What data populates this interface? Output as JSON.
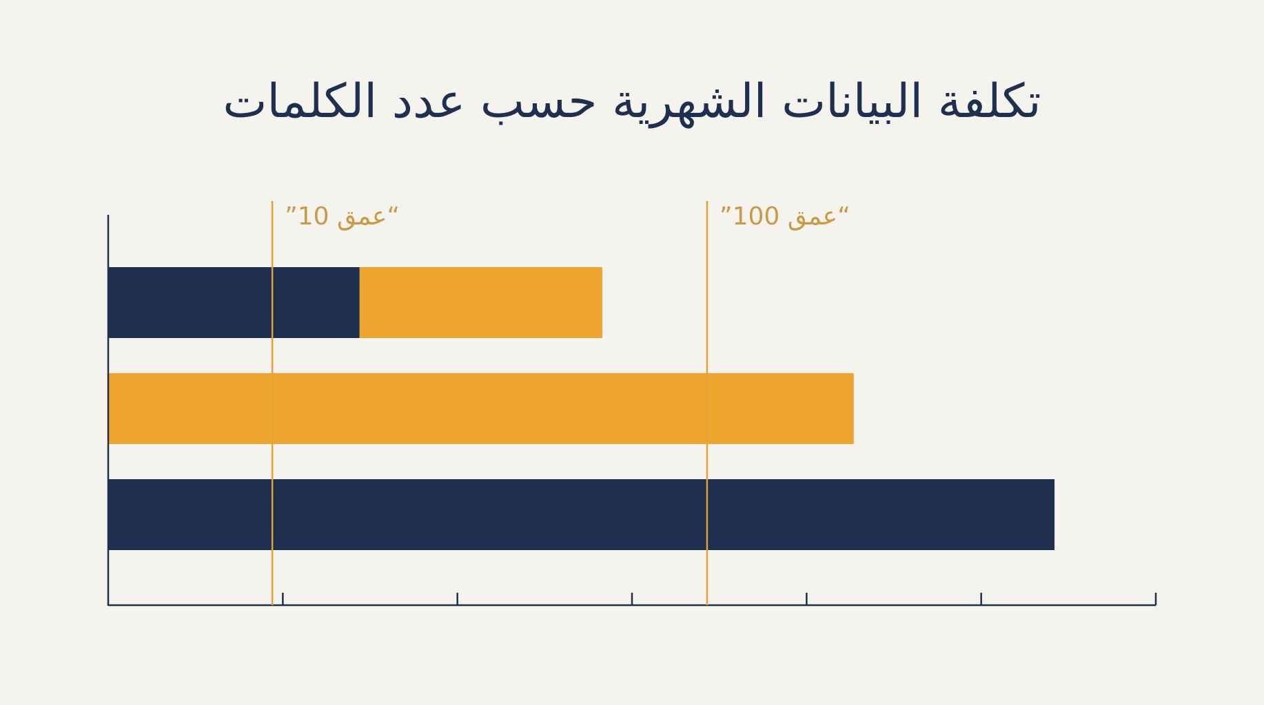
{
  "chart_data": {
    "type": "bar",
    "orientation": "horizontal",
    "title": "تكلفة البيانات الشهرية حسب عدد الكلمات",
    "xlabel": "",
    "ylabel": "",
    "xlim": [
      0,
      6
    ],
    "x_ticks": [
      1,
      2,
      3,
      4,
      5,
      6
    ],
    "grid": false,
    "legend": "none",
    "rows": [
      {
        "segments": [
          {
            "value": 1.44,
            "color": "#1e2f50"
          },
          {
            "value": 1.39,
            "color": "#eda52f"
          }
        ]
      },
      {
        "segments": [
          {
            "value": 4.27,
            "color": "#eda52f"
          }
        ]
      },
      {
        "segments": [
          {
            "value": 5.42,
            "color": "#1e2f50"
          }
        ]
      }
    ],
    "reference_lines": [
      {
        "value": 0.94,
        "label": "”عمق 10“"
      },
      {
        "value": 3.43,
        "label": "”عمق 100“"
      }
    ]
  },
  "colors": {
    "background": "#f4f3ee",
    "navy": "#1e2f50",
    "amber": "#eda52f",
    "reference": "#e3a13a",
    "reference_text": "#c99a45",
    "axis": "#1e2f50"
  }
}
